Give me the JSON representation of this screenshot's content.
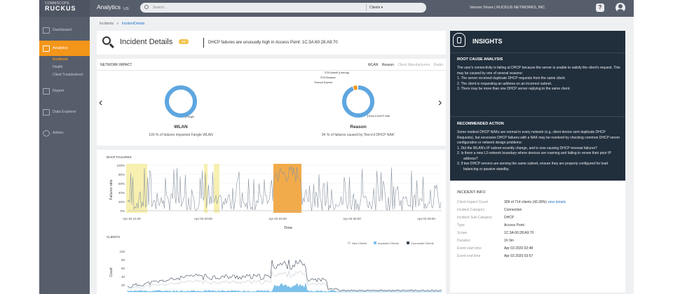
{
  "brand": {
    "logo_line1": "COMMSCOPE",
    "logo_line2": "RUCKUS",
    "accent": "#f39519",
    "sidebar_bg": "#575e6b"
  },
  "topbar": {
    "title": "Analytics",
    "region": "US",
    "search_placeholder": "Search...",
    "search_scope": "Clients ▾",
    "user": "Vernon Shure | RUCKUS NETWORKS, INC",
    "help_label": "?"
  },
  "sidebar": {
    "items": [
      {
        "label": "Dashboard",
        "icon": "dashboard-icon"
      },
      {
        "label": "Analytics",
        "icon": "analytics-icon",
        "active": true
      },
      {
        "label": "Report",
        "icon": "report-icon"
      },
      {
        "label": "Data Explorer",
        "icon": "data-explorer-icon"
      },
      {
        "label": "Admin",
        "icon": "admin-icon"
      }
    ],
    "analytics_sub": [
      "Incidents",
      "Health",
      "Client Troubleshoot"
    ]
  },
  "breadcrumb": {
    "root": "Incidents",
    "sep": "»",
    "current": "IncidentDetails"
  },
  "header": {
    "title": "Incident Details",
    "badge": "P3",
    "summary": "DHCP failures are unusually high in Access Point: 1C:3A:60:28:A9:70"
  },
  "network_impact": {
    "title": "NETWORK IMPACT",
    "tabs": [
      "WLAN",
      "Reason",
      "Client Manufacturers",
      "Radio"
    ],
    "wlan": {
      "label": "WLAN",
      "desc": "100 % of failures impacted Fangle WLAN",
      "segment": "Fangle",
      "percent": 100
    },
    "reason": {
      "label": "Reason",
      "desc": "94 % of failures caused by 'Recv'd DHCP NAK'",
      "segments": [
        {
          "name": "Recv'd DHCP NAK",
          "percent": 94
        },
        {
          "name": "STA Deauth (Leaving)",
          "percent": 2
        },
        {
          "name": "STA Disassoc",
          "percent": 2
        },
        {
          "name": "Timeout Expired",
          "percent": 2
        }
      ]
    },
    "donut_color": "#5ea6e0"
  },
  "dhcp_failures": {
    "title": "DHCP FAILURES",
    "ylabel": "Failures ratio",
    "xlabel": "Time",
    "yticks": [
      "100%",
      "80%",
      "60%",
      "40%",
      "20%",
      "0%"
    ],
    "xticks": [
      "Apr 02 21:00",
      "Apr 03 00:00",
      "Apr 03 03:00",
      "Apr 03 06:00",
      "Apr 03 09:00"
    ]
  },
  "clients": {
    "title": "CLIENTS",
    "ylabel": "Count",
    "yticks": [
      "100",
      "80",
      "60",
      "40",
      "20"
    ],
    "legend": [
      "New Clients",
      "Impacted Clients",
      "Connected Clients"
    ]
  },
  "insights": {
    "title": "INSIGHTS",
    "root_cause_title": "ROOT CAUSE ANALYSIS",
    "root_cause_text": "The user's connectivity is failing at DHCP because the server is unable to satisfy the client's request. This may be caused by one of several reasons:",
    "root_cause_items": [
      "1.  The server received duplicate DHCP requests from the same client.",
      "2.  The client is requesting an address on an incorrect subnet.",
      "3.  There may be more than one DHCP server replying to the same client."
    ],
    "action_title": "RECOMMENDED ACTION",
    "action_text": "Some modest DHCP NAKs are normal in every network (e.g. client device sent duplicate DHCP Requests), but excessive DHCP failures with a NAK may be resolved by checking common DHCP server configuration or network design problems:",
    "action_items": [
      "1.  Did the WLAN's IP subnet recently change, and is now causing DHCP renewal failures?",
      "2.  Is there a new L3 network boundary where devices are roaming and failing to renew their prior IP address?",
      "3.  If two DHCP servers are serving the same subnet, ensure they are properly configured for load balancing or passive standby."
    ]
  },
  "incident_info": {
    "title": "INCIDENT INFO",
    "rows": [
      {
        "k": "Client Impact Count",
        "v": "309 of 714 clients (43.28%)",
        "link": "view details"
      },
      {
        "k": "Incident Category",
        "v": "Connection"
      },
      {
        "k": "Incident Sub-Category",
        "v": "DHCP"
      },
      {
        "k": "Type",
        "v": "Access Point"
      },
      {
        "k": "Scope",
        "v": "1C:3A:60:28:A9:70"
      },
      {
        "k": "Duration",
        "v": "1h 9m"
      },
      {
        "k": "Event start time",
        "v": "Apr 03 2020 02:48"
      },
      {
        "k": "Event end time",
        "v": "Apr 03 2020 03:57"
      }
    ]
  }
}
